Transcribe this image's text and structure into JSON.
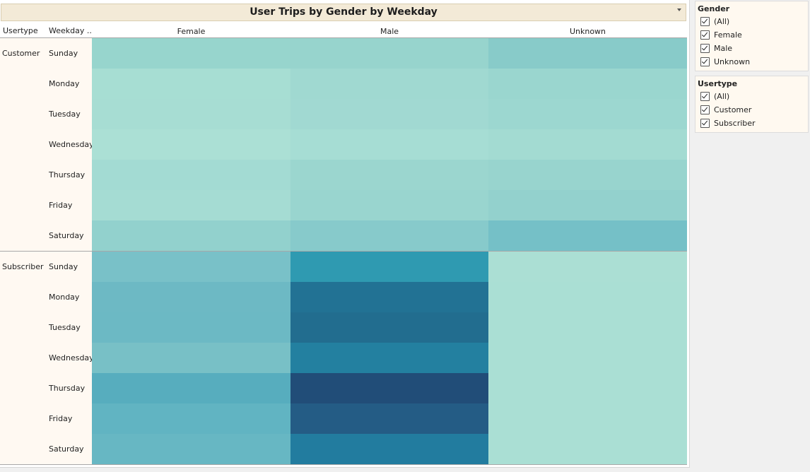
{
  "title": "User Trips by Gender by Weekday",
  "headers": {
    "usertype": "Usertype",
    "weekday": "Weekday .."
  },
  "chart_data": {
    "type": "heatmap",
    "title": "User Trips by Gender by Weekday",
    "columns": [
      "Female",
      "Male",
      "Unknown"
    ],
    "row_groups": [
      "Customer",
      "Subscriber"
    ],
    "weekdays": [
      "Sunday",
      "Monday",
      "Tuesday",
      "Wednesday",
      "Thursday",
      "Friday",
      "Saturday"
    ],
    "cell_colors": [
      [
        "#97d5cd",
        "#97d4cd",
        "#88cbc9"
      ],
      [
        "#a7ded3",
        "#a0d9d1",
        "#9ad6cf"
      ],
      [
        "#a7ddd3",
        "#a1d9d2",
        "#9cd7d0"
      ],
      [
        "#abe0d5",
        "#a6ddd4",
        "#a3dbd2"
      ],
      [
        "#a3dbd3",
        "#9bd6cf",
        "#98d4ce"
      ],
      [
        "#a5dcd3",
        "#99d5cf",
        "#93d1cd"
      ],
      [
        "#92d1cd",
        "#87cacb",
        "#75c0c7"
      ],
      [
        "#79c1c8",
        "#2f9ab1",
        "#abdfd4"
      ],
      [
        "#6db9c4",
        "#227294",
        "#aadfd4"
      ],
      [
        "#6cb9c4",
        "#226d8f",
        "#aadfd4"
      ],
      [
        "#78c0c6",
        "#2380a0",
        "#aadfd4"
      ],
      [
        "#57adbe",
        "#214d78",
        "#aadfd4"
      ],
      [
        "#61b4c2",
        "#245c85",
        "#aadfd4"
      ],
      [
        "#67b7c3",
        "#227c9f",
        "#aadfd4"
      ]
    ],
    "color_scale": "light teal (fewer trips) to dark blue (more trips)"
  },
  "filters": {
    "gender": {
      "title": "Gender",
      "items": [
        "(All)",
        "Female",
        "Male",
        "Unknown"
      ]
    },
    "usertype": {
      "title": "Usertype",
      "items": [
        "(All)",
        "Customer",
        "Subscriber"
      ]
    }
  }
}
